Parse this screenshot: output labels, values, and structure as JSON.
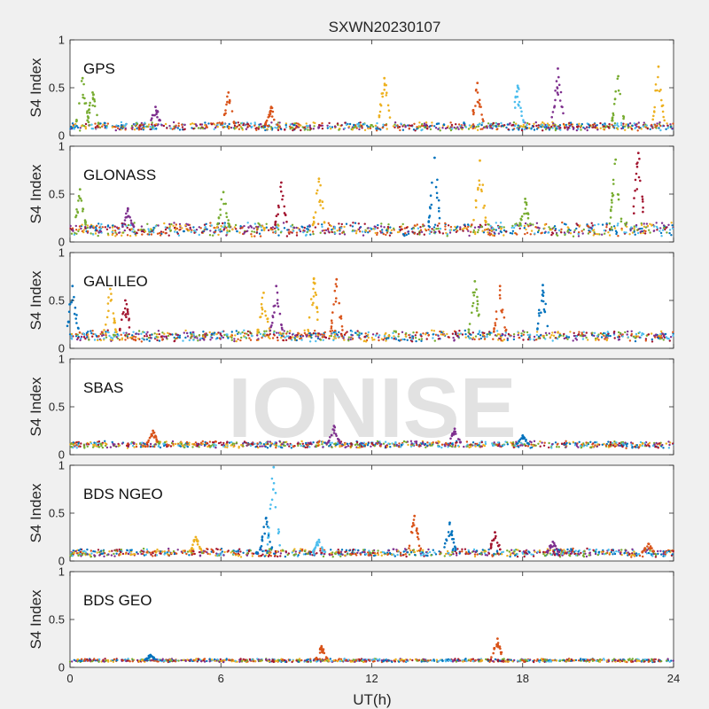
{
  "chart_data": {
    "type": "scatter",
    "title": "SXWN20230107",
    "xlabel": "UT(h)",
    "ylabel": "S4 Index",
    "xlim": [
      0,
      24
    ],
    "xticks": [
      0,
      6,
      12,
      18,
      24
    ],
    "ylim": [
      0,
      1
    ],
    "yticks": [
      0,
      0.5,
      1
    ],
    "watermark": "IONISE",
    "series_colors": [
      "#0072BD",
      "#D95319",
      "#EDB120",
      "#7E2F8E",
      "#77AC30",
      "#4DBEEE",
      "#A2142F"
    ],
    "panels": [
      {
        "label": "GPS",
        "baseline": 0.09,
        "noise": 0.03,
        "bursts": [
          {
            "t": 0.5,
            "peak": 0.6,
            "color": 4
          },
          {
            "t": 0.9,
            "peak": 0.45,
            "color": 4
          },
          {
            "t": 3.4,
            "peak": 0.3,
            "color": 3
          },
          {
            "t": 6.3,
            "peak": 0.45,
            "color": 1
          },
          {
            "t": 8.0,
            "peak": 0.3,
            "color": 1
          },
          {
            "t": 12.5,
            "peak": 0.6,
            "color": 2
          },
          {
            "t": 16.2,
            "peak": 0.55,
            "color": 1
          },
          {
            "t": 17.8,
            "peak": 0.52,
            "color": 5
          },
          {
            "t": 19.4,
            "peak": 0.7,
            "color": 3
          },
          {
            "t": 21.8,
            "peak": 0.62,
            "color": 4
          },
          {
            "t": 23.4,
            "peak": 0.72,
            "color": 2
          }
        ]
      },
      {
        "label": "GLONASS",
        "baseline": 0.12,
        "noise": 0.05,
        "bursts": [
          {
            "t": 0.4,
            "peak": 0.55,
            "color": 4
          },
          {
            "t": 2.3,
            "peak": 0.35,
            "color": 3
          },
          {
            "t": 6.1,
            "peak": 0.52,
            "color": 4
          },
          {
            "t": 8.4,
            "peak": 0.62,
            "color": 6
          },
          {
            "t": 9.9,
            "peak": 0.66,
            "color": 2
          },
          {
            "t": 14.5,
            "peak": 0.88,
            "color": 0
          },
          {
            "t": 16.3,
            "peak": 0.85,
            "color": 2
          },
          {
            "t": 18.1,
            "peak": 0.45,
            "color": 4
          },
          {
            "t": 21.7,
            "peak": 0.86,
            "color": 4
          },
          {
            "t": 22.6,
            "peak": 0.93,
            "color": 6
          }
        ]
      },
      {
        "label": "GALILEO",
        "baseline": 0.12,
        "noise": 0.04,
        "bursts": [
          {
            "t": 0.1,
            "peak": 0.65,
            "color": 0
          },
          {
            "t": 1.6,
            "peak": 0.62,
            "color": 2
          },
          {
            "t": 2.2,
            "peak": 0.5,
            "color": 6
          },
          {
            "t": 7.7,
            "peak": 0.58,
            "color": 2
          },
          {
            "t": 8.2,
            "peak": 0.65,
            "color": 3
          },
          {
            "t": 9.7,
            "peak": 0.73,
            "color": 2
          },
          {
            "t": 10.6,
            "peak": 0.72,
            "color": 1
          },
          {
            "t": 16.1,
            "peak": 0.7,
            "color": 4
          },
          {
            "t": 17.1,
            "peak": 0.65,
            "color": 1
          },
          {
            "t": 18.8,
            "peak": 0.66,
            "color": 0
          }
        ]
      },
      {
        "label": "SBAS",
        "baseline": 0.1,
        "noise": 0.025,
        "bursts": [
          {
            "t": 3.3,
            "peak": 0.25,
            "color": 1
          },
          {
            "t": 10.5,
            "peak": 0.3,
            "color": 3
          },
          {
            "t": 15.3,
            "peak": 0.27,
            "color": 3
          },
          {
            "t": 18.0,
            "peak": 0.2,
            "color": 0
          }
        ]
      },
      {
        "label": "BDS NGEO",
        "baseline": 0.08,
        "noise": 0.03,
        "bursts": [
          {
            "t": 5.0,
            "peak": 0.25,
            "color": 2
          },
          {
            "t": 7.8,
            "peak": 0.45,
            "color": 0
          },
          {
            "t": 8.1,
            "peak": 0.98,
            "color": 5
          },
          {
            "t": 9.9,
            "peak": 0.22,
            "color": 5
          },
          {
            "t": 13.7,
            "peak": 0.47,
            "color": 1
          },
          {
            "t": 15.1,
            "peak": 0.4,
            "color": 0
          },
          {
            "t": 16.9,
            "peak": 0.3,
            "color": 6
          },
          {
            "t": 19.2,
            "peak": 0.2,
            "color": 3
          },
          {
            "t": 23.0,
            "peak": 0.18,
            "color": 1
          }
        ]
      },
      {
        "label": "BDS GEO",
        "baseline": 0.07,
        "noise": 0.012,
        "bursts": [
          {
            "t": 3.2,
            "peak": 0.13,
            "color": 0
          },
          {
            "t": 10.0,
            "peak": 0.22,
            "color": 1
          },
          {
            "t": 17.0,
            "peak": 0.3,
            "color": 1
          }
        ]
      }
    ]
  }
}
